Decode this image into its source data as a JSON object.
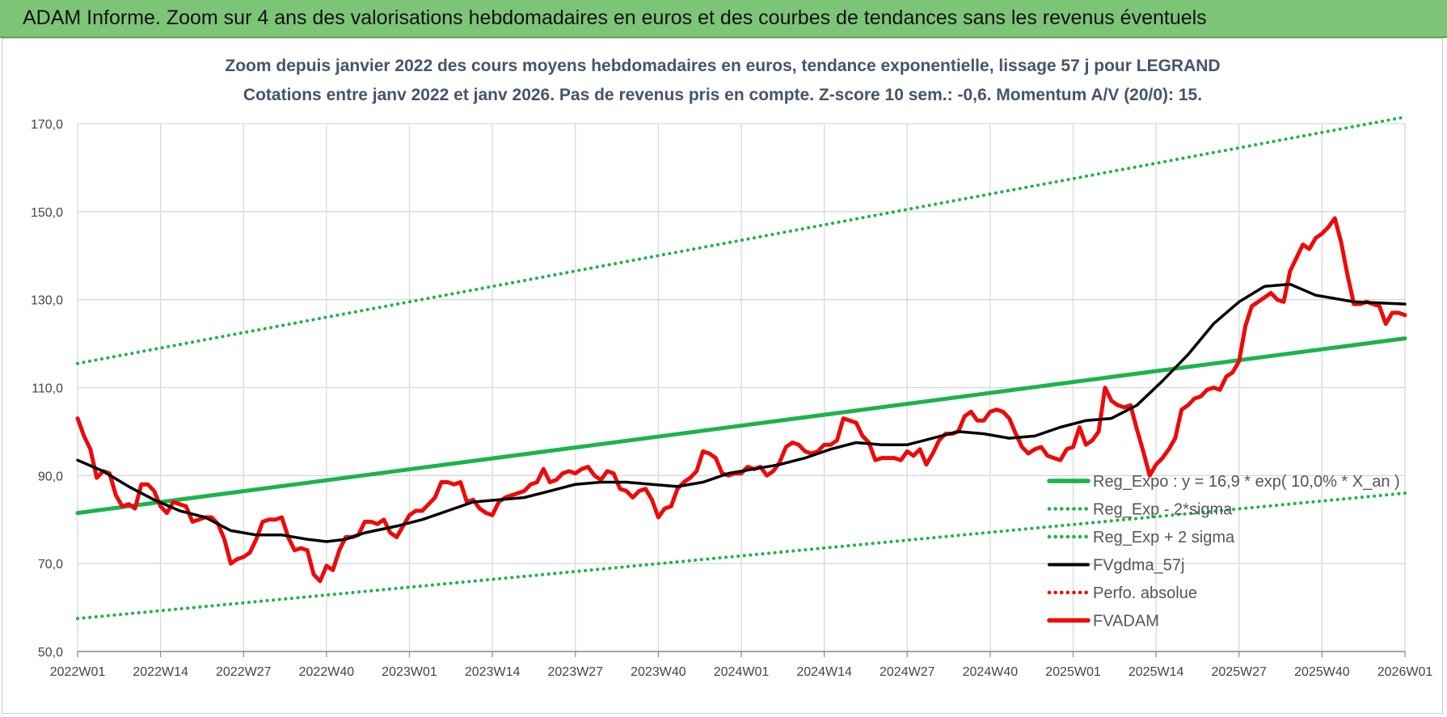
{
  "header": {
    "title": "ADAM Informe. Zoom sur 4 ans des valorisations hebdomadaires en euros et des courbes de tendances sans les revenus éventuels"
  },
  "colors": {
    "header_bg": "#7cc576",
    "green": "#1db34a",
    "red": "#ee0a0a",
    "black": "#000000",
    "grid": "#d9d9d9"
  },
  "chart_data": {
    "type": "line",
    "title": "Zoom depuis janvier 2022 des cours moyens hebdomadaires en euros, tendance exponentielle, lissage 57 j pour LEGRAND",
    "subtitle": "Cotations entre janv 2022 et janv 2026. Pas de revenus pris en compte. Z-score 10 sem.: -0,6. Momentum A/V (20/0): 15.",
    "ylim": [
      50,
      170
    ],
    "y_ticks": [
      "50,0",
      "70,0",
      "90,0",
      "110,0",
      "130,0",
      "150,0",
      "170,0"
    ],
    "x_ticks": [
      "2022W01",
      "2022W14",
      "2022W27",
      "2022W40",
      "2023W01",
      "2023W14",
      "2023W27",
      "2023W40",
      "2024W01",
      "2024W14",
      "2024W27",
      "2024W40",
      "2025W01",
      "2025W14",
      "2025W27",
      "2025W40",
      "2026W01"
    ],
    "x_range_weeks": [
      0,
      208
    ],
    "grid": true,
    "legend_position": "bottom-right",
    "series": [
      {
        "name": "Reg_Expo : y = 16,9 * exp( 10,0% * X_an )",
        "style": "solid-green",
        "points": [
          [
            0,
            81.5
          ],
          [
            208,
            121.2
          ]
        ]
      },
      {
        "name": "Reg_Exp - 2*sigma",
        "style": "dotted-green",
        "points": [
          [
            0,
            57.5
          ],
          [
            208,
            86.0
          ]
        ]
      },
      {
        "name": "Reg_Exp + 2 sigma",
        "style": "dotted-green",
        "points": [
          [
            0,
            115.5
          ],
          [
            208,
            171.5
          ]
        ]
      },
      {
        "name": "FVgdma_57j",
        "style": "solid-black",
        "points": [
          [
            0,
            93.5
          ],
          [
            4,
            91
          ],
          [
            8,
            87.5
          ],
          [
            12,
            84.5
          ],
          [
            16,
            82
          ],
          [
            20,
            80.5
          ],
          [
            24,
            77.5
          ],
          [
            28,
            76.5
          ],
          [
            32,
            76.5
          ],
          [
            36,
            75.5
          ],
          [
            39,
            75
          ],
          [
            42,
            75.5
          ],
          [
            45,
            77
          ],
          [
            50,
            78.5
          ],
          [
            54,
            80
          ],
          [
            58,
            82
          ],
          [
            62,
            84
          ],
          [
            66,
            84.5
          ],
          [
            70,
            85
          ],
          [
            74,
            86.5
          ],
          [
            78,
            88
          ],
          [
            82,
            88.5
          ],
          [
            86,
            88.5
          ],
          [
            90,
            88
          ],
          [
            94,
            87.5
          ],
          [
            98,
            88.5
          ],
          [
            102,
            90.5
          ],
          [
            106,
            91.5
          ],
          [
            110,
            92.5
          ],
          [
            114,
            94
          ],
          [
            118,
            96
          ],
          [
            122,
            97.5
          ],
          [
            126,
            97
          ],
          [
            130,
            97
          ],
          [
            134,
            98.5
          ],
          [
            138,
            100
          ],
          [
            142,
            99.5
          ],
          [
            146,
            98.5
          ],
          [
            150,
            99
          ],
          [
            154,
            101
          ],
          [
            158,
            102.5
          ],
          [
            162,
            103
          ],
          [
            166,
            106
          ],
          [
            170,
            111.5
          ],
          [
            174,
            117.5
          ],
          [
            178,
            124.5
          ],
          [
            182,
            129.5
          ],
          [
            186,
            133
          ],
          [
            190,
            133.5
          ],
          [
            194,
            131
          ],
          [
            200,
            129.5
          ],
          [
            208,
            129
          ]
        ]
      },
      {
        "name": "Perfo. absolue",
        "style": "dotted-red",
        "points": []
      },
      {
        "name": "FVADAM",
        "style": "solid-red",
        "points": [
          [
            0,
            103
          ],
          [
            1,
            99
          ],
          [
            2,
            96
          ],
          [
            3,
            89.5
          ],
          [
            4,
            91
          ],
          [
            5,
            90.5
          ],
          [
            6,
            85.5
          ],
          [
            7,
            83
          ],
          [
            8,
            83.5
          ],
          [
            9,
            82.5
          ],
          [
            10,
            88
          ],
          [
            11,
            88
          ],
          [
            12,
            86.5
          ],
          [
            13,
            83
          ],
          [
            14,
            81.5
          ],
          [
            15,
            84
          ],
          [
            16,
            83.5
          ],
          [
            17,
            83
          ],
          [
            18,
            79.5
          ],
          [
            19,
            80
          ],
          [
            20,
            80.5
          ],
          [
            21,
            80.5
          ],
          [
            22,
            79
          ],
          [
            23,
            75.5
          ],
          [
            24,
            70
          ],
          [
            25,
            71
          ],
          [
            26,
            71.5
          ],
          [
            27,
            72.5
          ],
          [
            28,
            75.5
          ],
          [
            29,
            79.5
          ],
          [
            30,
            80
          ],
          [
            31,
            80
          ],
          [
            32,
            80.5
          ],
          [
            33,
            76
          ],
          [
            34,
            73
          ],
          [
            35,
            73.5
          ],
          [
            36,
            73
          ],
          [
            37,
            67.5
          ],
          [
            38,
            66
          ],
          [
            39,
            69.5
          ],
          [
            40,
            68.5
          ],
          [
            41,
            73
          ],
          [
            42,
            76
          ],
          [
            43,
            76
          ],
          [
            44,
            76.5
          ],
          [
            45,
            79.5
          ],
          [
            46,
            79.5
          ],
          [
            47,
            79
          ],
          [
            48,
            80
          ],
          [
            49,
            77
          ],
          [
            50,
            76
          ],
          [
            51,
            78.5
          ],
          [
            52,
            81
          ],
          [
            53,
            82
          ],
          [
            54,
            82
          ],
          [
            55,
            83.5
          ],
          [
            56,
            85
          ],
          [
            57,
            88.5
          ],
          [
            58,
            88.5
          ],
          [
            59,
            88
          ],
          [
            60,
            88.5
          ],
          [
            61,
            84
          ],
          [
            62,
            84.5
          ],
          [
            63,
            82.5
          ],
          [
            64,
            81.5
          ],
          [
            65,
            81
          ],
          [
            66,
            84
          ],
          [
            67,
            85
          ],
          [
            68,
            85.5
          ],
          [
            69,
            86
          ],
          [
            70,
            86.5
          ],
          [
            71,
            88
          ],
          [
            72,
            88.5
          ],
          [
            73,
            91.5
          ],
          [
            74,
            88.5
          ],
          [
            75,
            89
          ],
          [
            76,
            90.5
          ],
          [
            77,
            91
          ],
          [
            78,
            90.5
          ],
          [
            79,
            91.5
          ],
          [
            80,
            92
          ],
          [
            81,
            90
          ],
          [
            82,
            89
          ],
          [
            83,
            91
          ],
          [
            84,
            90.5
          ],
          [
            85,
            87
          ],
          [
            86,
            86.5
          ],
          [
            87,
            85
          ],
          [
            88,
            86.5
          ],
          [
            89,
            87
          ],
          [
            90,
            84.5
          ],
          [
            91,
            80.5
          ],
          [
            92,
            82.5
          ],
          [
            93,
            83
          ],
          [
            94,
            87
          ],
          [
            95,
            88.5
          ],
          [
            96,
            89.5
          ],
          [
            97,
            91
          ],
          [
            98,
            95.5
          ],
          [
            99,
            95
          ],
          [
            100,
            94
          ],
          [
            101,
            90.5
          ],
          [
            102,
            90
          ],
          [
            103,
            90.5
          ],
          [
            104,
            90.5
          ],
          [
            105,
            92
          ],
          [
            106,
            91.5
          ],
          [
            107,
            92
          ],
          [
            108,
            90
          ],
          [
            109,
            91
          ],
          [
            110,
            93
          ],
          [
            111,
            96.5
          ],
          [
            112,
            97.5
          ],
          [
            113,
            97
          ],
          [
            114,
            95.5
          ],
          [
            115,
            95
          ],
          [
            116,
            95.5
          ],
          [
            117,
            97
          ],
          [
            118,
            97
          ],
          [
            119,
            98
          ],
          [
            120,
            103
          ],
          [
            121,
            102.5
          ],
          [
            122,
            102
          ],
          [
            123,
            99
          ],
          [
            124,
            97.5
          ],
          [
            125,
            93.5
          ],
          [
            126,
            94
          ],
          [
            127,
            94
          ],
          [
            128,
            94
          ],
          [
            129,
            93.5
          ],
          [
            130,
            95.5
          ],
          [
            131,
            94.5
          ],
          [
            132,
            96
          ],
          [
            133,
            92.5
          ],
          [
            134,
            95
          ],
          [
            135,
            98
          ],
          [
            136,
            99.5
          ],
          [
            137,
            99.5
          ],
          [
            138,
            100
          ],
          [
            139,
            103.5
          ],
          [
            140,
            104.5
          ],
          [
            141,
            102.5
          ],
          [
            142,
            102.5
          ],
          [
            143,
            104.5
          ],
          [
            144,
            105
          ],
          [
            145,
            104.5
          ],
          [
            146,
            103
          ],
          [
            147,
            99.5
          ],
          [
            148,
            96.5
          ],
          [
            149,
            95
          ],
          [
            150,
            96
          ],
          [
            151,
            96.5
          ],
          [
            152,
            94.5
          ],
          [
            153,
            94
          ],
          [
            154,
            93.5
          ],
          [
            155,
            96
          ],
          [
            156,
            96.5
          ],
          [
            157,
            101
          ],
          [
            158,
            97
          ],
          [
            159,
            98
          ],
          [
            160,
            100
          ],
          [
            161,
            110
          ],
          [
            162,
            107
          ],
          [
            163,
            106
          ],
          [
            164,
            105.5
          ],
          [
            165,
            106
          ],
          [
            166,
            100.5
          ],
          [
            167,
            95.5
          ],
          [
            168,
            90
          ],
          [
            169,
            92.5
          ],
          [
            170,
            94
          ],
          [
            171,
            96
          ],
          [
            172,
            98.5
          ],
          [
            173,
            105
          ],
          [
            174,
            106
          ],
          [
            175,
            107.5
          ],
          [
            176,
            108
          ],
          [
            177,
            109.5
          ],
          [
            178,
            110
          ],
          [
            179,
            109.5
          ],
          [
            180,
            112.5
          ],
          [
            181,
            113.5
          ],
          [
            182,
            116
          ],
          [
            183,
            124
          ],
          [
            184,
            128.5
          ],
          [
            185,
            129.5
          ],
          [
            186,
            130.5
          ],
          [
            187,
            131.5
          ],
          [
            188,
            130
          ],
          [
            189,
            129.5
          ],
          [
            190,
            136.5
          ],
          [
            191,
            139.5
          ],
          [
            192,
            142.5
          ],
          [
            193,
            141.5
          ],
          [
            194,
            144
          ],
          [
            195,
            145
          ],
          [
            196,
            146.5
          ],
          [
            197,
            148.5
          ],
          [
            198,
            143
          ],
          [
            199,
            135.5
          ],
          [
            200,
            129
          ],
          [
            201,
            129
          ],
          [
            202,
            129.5
          ],
          [
            203,
            129
          ],
          [
            204,
            128.5
          ],
          [
            205,
            124.5
          ],
          [
            206,
            127
          ],
          [
            207,
            127
          ],
          [
            208,
            126.5
          ]
        ]
      }
    ]
  }
}
